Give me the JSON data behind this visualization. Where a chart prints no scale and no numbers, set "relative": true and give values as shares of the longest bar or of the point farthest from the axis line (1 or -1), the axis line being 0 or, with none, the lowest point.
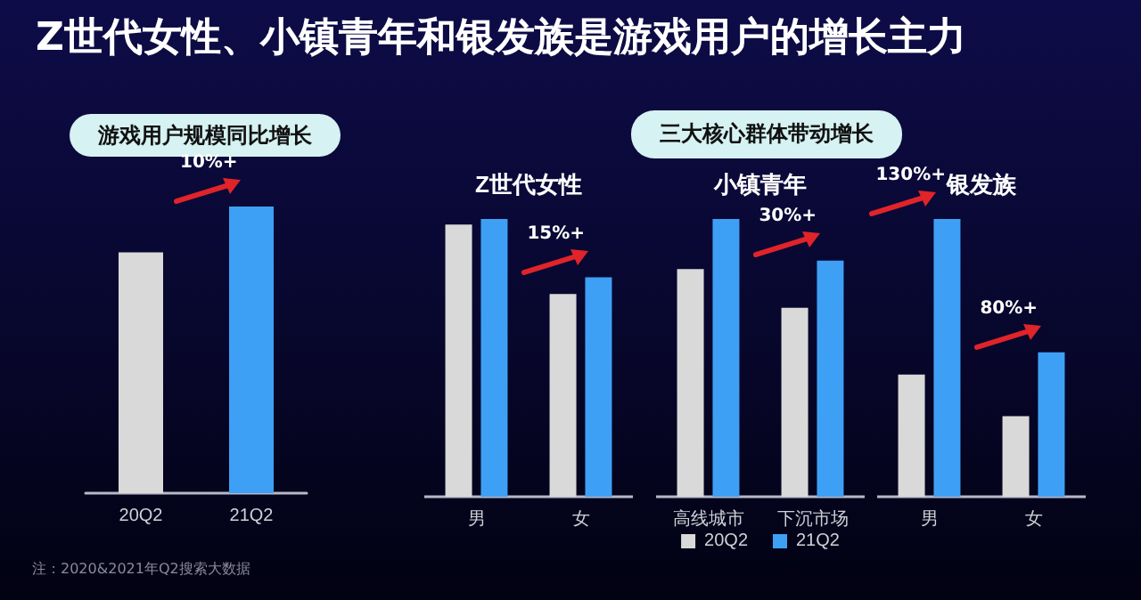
{
  "chart_data": [
    {
      "type": "other",
      "title": "Z世代女性、小镇青年和银发族是游戏用户的增长主力",
      "annotations": [
        "注：2020&2021年Q2搜索大数据"
      ]
    },
    {
      "type": "bar",
      "title": "游戏用户规模同比增长",
      "categories": [
        "20Q2",
        "21Q2"
      ],
      "values": [
        0.84,
        1
      ],
      "colors": [
        "#d9d9d9",
        "#3ea0f5"
      ],
      "relative": true,
      "annotations": [
        "10%+"
      ]
    },
    {
      "type": "other",
      "title": "三大核心群体带动增长"
    },
    {
      "type": "bar",
      "title": "Z世代女性",
      "categories": [
        "男",
        "女"
      ],
      "relative": true,
      "series": [
        {
          "color": "#d9d9d9",
          "values": [
            0.98,
            0.73
          ]
        },
        {
          "color": "#3ea0f5",
          "values": [
            1,
            0.79
          ]
        }
      ],
      "annotations": [
        "15%+"
      ]
    },
    {
      "type": "bar",
      "title": "小镇青年",
      "categories": [
        "高线城市",
        "下沉市场"
      ],
      "relative": true,
      "legend": "bottom",
      "series": [
        {
          "name": "20Q2",
          "color": "#d9d9d9",
          "values": [
            0.82,
            0.68
          ]
        },
        {
          "name": "21Q2",
          "color": "#3ea0f5",
          "values": [
            1,
            0.85
          ]
        }
      ],
      "annotations": [
        "30%+"
      ]
    },
    {
      "type": "bar",
      "title": "银发族",
      "categories": [
        "男",
        "女"
      ],
      "relative": true,
      "series": [
        {
          "color": "#d9d9d9",
          "values": [
            0.44,
            0.29
          ]
        },
        {
          "color": "#3ea0f5",
          "values": [
            1,
            0.52
          ]
        }
      ],
      "annotations": [
        "130%+",
        "80%+"
      ]
    }
  ]
}
